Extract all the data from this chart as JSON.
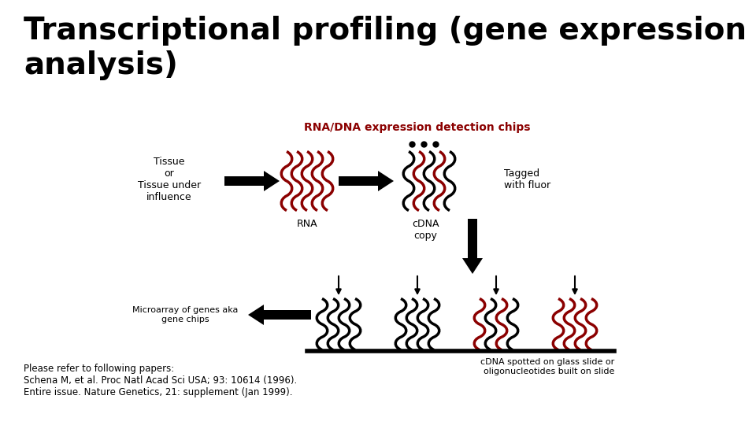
{
  "title": "Transcriptional profiling (gene expression\nanalysis)",
  "title_fontsize": 28,
  "title_color": "#000000",
  "title_fontweight": "bold",
  "bg_color": "#ffffff",
  "chip_label": "RNA/DNA expression detection chips",
  "chip_label_color": "#8b0000",
  "chip_label_fontsize": 10,
  "tissue_label": "Tissue\nor\nTissue under\ninfluence",
  "rna_label": "RNA",
  "cdna_label": "cDNA\ncopy",
  "tagged_label": "Tagged\nwith fluor",
  "microarray_label": "Microarray of genes aka\ngene chips",
  "spotted_label": "cDNA spotted on glass slide or\noligonucleotides built on slide",
  "ref_text": "Please refer to following papers:\nSchena M, et al. Proc Natl Acad Sci USA; 93: 10614 (1996).\nEntire issue. Nature Genetics, 21: supplement (Jan 1999).",
  "dark_red": "#8b0000",
  "black": "#000000",
  "label_fontsize": 9
}
